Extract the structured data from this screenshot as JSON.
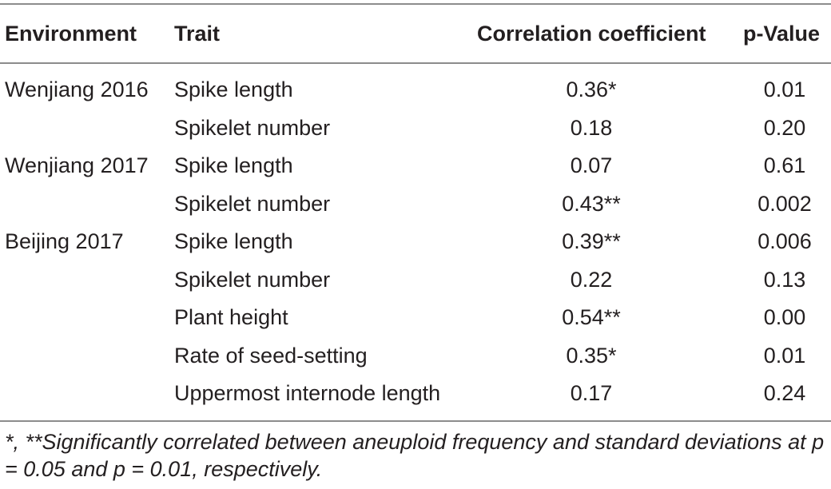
{
  "table": {
    "headers": {
      "environment": "Environment",
      "trait": "Trait",
      "coefficient": "Correlation coefficient",
      "p_value": "p-Value"
    },
    "rows": [
      {
        "environment": "Wenjiang 2016",
        "trait": "Spike length",
        "coefficient": "0.36*",
        "p_value": "0.01"
      },
      {
        "environment": "",
        "trait": "Spikelet number",
        "coefficient": "0.18",
        "p_value": "0.20"
      },
      {
        "environment": "Wenjiang 2017",
        "trait": "Spike length",
        "coefficient": "0.07",
        "p_value": "0.61"
      },
      {
        "environment": "",
        "trait": "Spikelet number",
        "coefficient": "0.43**",
        "p_value": "0.002"
      },
      {
        "environment": "Beijing 2017",
        "trait": "Spike length",
        "coefficient": "0.39**",
        "p_value": "0.006"
      },
      {
        "environment": "",
        "trait": "Spikelet number",
        "coefficient": "0.22",
        "p_value": "0.13"
      },
      {
        "environment": "",
        "trait": "Plant height",
        "coefficient": "0.54**",
        "p_value": "0.00"
      },
      {
        "environment": "",
        "trait": "Rate of seed-setting",
        "coefficient": "0.35*",
        "p_value": "0.01"
      },
      {
        "environment": "",
        "trait": "Uppermost internode length",
        "coefficient": "0.17",
        "p_value": "0.24"
      }
    ],
    "footnote": "*, **Significantly correlated between aneuploid frequency and standard deviations at p = 0.05 and p = 0.01, respectively."
  }
}
